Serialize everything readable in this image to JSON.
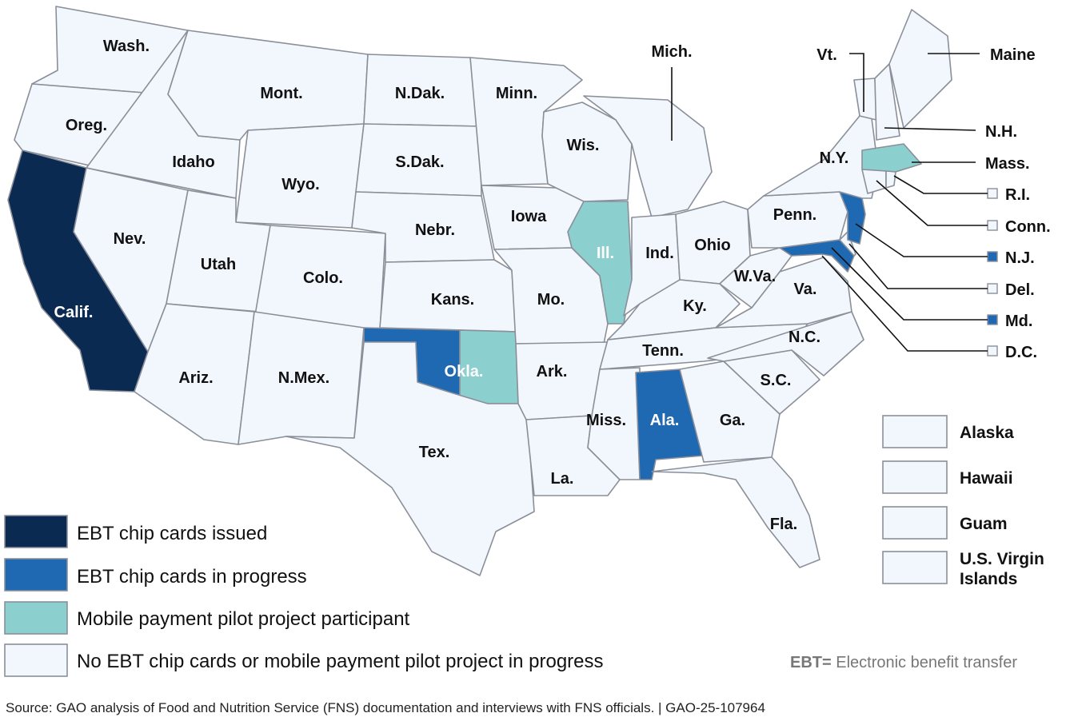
{
  "colors": {
    "issued": "#0b2a52",
    "in_progress": "#1f68b2",
    "pilot": "#8ccfcf",
    "none": "#f2f6fd",
    "border": "#8a8f99"
  },
  "legend": [
    {
      "key": "issued",
      "label": "EBT chip cards issued"
    },
    {
      "key": "in_progress",
      "label": "EBT chip cards in progress"
    },
    {
      "key": "pilot",
      "label": "Mobile payment pilot project participant"
    },
    {
      "key": "none",
      "label": "No EBT chip cards or mobile payment pilot project in progress"
    }
  ],
  "states": [
    {
      "name": "Wash.",
      "status": "none"
    },
    {
      "name": "Oreg.",
      "status": "none"
    },
    {
      "name": "Calif.",
      "status": "issued"
    },
    {
      "name": "Idaho",
      "status": "none"
    },
    {
      "name": "Nev.",
      "status": "none"
    },
    {
      "name": "Mont.",
      "status": "none"
    },
    {
      "name": "Wyo.",
      "status": "none"
    },
    {
      "name": "Utah",
      "status": "none"
    },
    {
      "name": "Colo.",
      "status": "none"
    },
    {
      "name": "Ariz.",
      "status": "none"
    },
    {
      "name": "N.Mex.",
      "status": "none"
    },
    {
      "name": "N.Dak.",
      "status": "none"
    },
    {
      "name": "S.Dak.",
      "status": "none"
    },
    {
      "name": "Nebr.",
      "status": "none"
    },
    {
      "name": "Kans.",
      "status": "none"
    },
    {
      "name": "Okla.",
      "status": "in_progress, pilot"
    },
    {
      "name": "Tex.",
      "status": "none"
    },
    {
      "name": "Minn.",
      "status": "none"
    },
    {
      "name": "Iowa",
      "status": "none"
    },
    {
      "name": "Mo.",
      "status": "none"
    },
    {
      "name": "Ark.",
      "status": "none"
    },
    {
      "name": "La.",
      "status": "none"
    },
    {
      "name": "Wis.",
      "status": "none"
    },
    {
      "name": "Ill.",
      "status": "pilot"
    },
    {
      "name": "Mich.",
      "status": "none"
    },
    {
      "name": "Ind.",
      "status": "none"
    },
    {
      "name": "Ohio",
      "status": "none"
    },
    {
      "name": "Ky.",
      "status": "none"
    },
    {
      "name": "Tenn.",
      "status": "none"
    },
    {
      "name": "Miss.",
      "status": "none"
    },
    {
      "name": "Ala.",
      "status": "in_progress"
    },
    {
      "name": "Ga.",
      "status": "none"
    },
    {
      "name": "Fla.",
      "status": "none"
    },
    {
      "name": "S.C.",
      "status": "none"
    },
    {
      "name": "N.C.",
      "status": "none"
    },
    {
      "name": "Va.",
      "status": "none"
    },
    {
      "name": "W.Va.",
      "status": "none"
    },
    {
      "name": "Penn.",
      "status": "none"
    },
    {
      "name": "N.Y.",
      "status": "none"
    },
    {
      "name": "Vt.",
      "status": "none"
    },
    {
      "name": "N.H.",
      "status": "none"
    },
    {
      "name": "Maine",
      "status": "none"
    },
    {
      "name": "Mass.",
      "status": "pilot"
    },
    {
      "name": "R.I.",
      "status": "none"
    },
    {
      "name": "Conn.",
      "status": "none"
    },
    {
      "name": "N.J.",
      "status": "in_progress"
    },
    {
      "name": "Del.",
      "status": "none"
    },
    {
      "name": "Md.",
      "status": "in_progress"
    },
    {
      "name": "D.C.",
      "status": "none"
    }
  ],
  "territories": [
    {
      "label": "Alaska",
      "status": "none"
    },
    {
      "label": "Hawaii",
      "status": "none"
    },
    {
      "label": "Guam",
      "status": "none"
    },
    {
      "label": "U.S. Virgin Islands",
      "label_line1": "U.S. Virgin",
      "label_line2": "Islands",
      "status": "none"
    }
  ],
  "abbreviation": {
    "term": "EBT=",
    "definition": " Electronic benefit transfer"
  },
  "source": "Source: GAO analysis of Food and Nutrition Service (FNS) documentation and interviews with FNS officials.  |  GAO-25-107964"
}
